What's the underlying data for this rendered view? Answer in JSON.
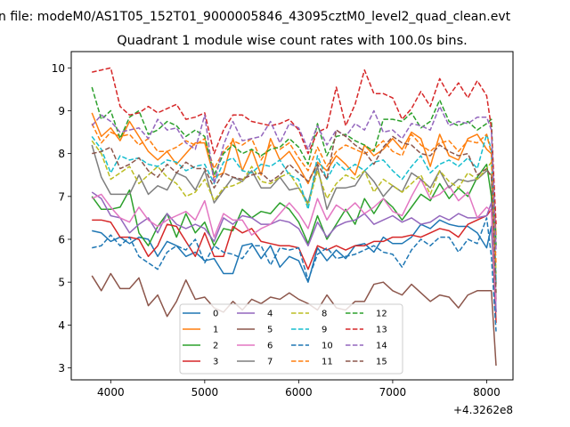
{
  "chart_data": {
    "type": "line",
    "suptitle": "n file: modeM0/AS1T05_152T01_9000005846_43095cztM0_level2_quad_clean.evt",
    "title": "Quadrant 1 module wise count rates with 100.0s bins.",
    "xlabel": "",
    "ylabel": "",
    "x_offset_label": "+4.3262e8",
    "xlim": [
      3580,
      8280
    ],
    "ylim": [
      2.72,
      10.38
    ],
    "xticks": [
      4000,
      5000,
      6000,
      7000,
      8000
    ],
    "yticks": [
      3,
      4,
      5,
      6,
      7,
      8,
      9,
      10
    ],
    "grid": false,
    "legend_position": "lower-center",
    "legend_columns": 4,
    "x": [
      3800,
      3900,
      4000,
      4100,
      4200,
      4300,
      4400,
      4500,
      4600,
      4700,
      4800,
      4900,
      5000,
      5100,
      5200,
      5300,
      5400,
      5500,
      5600,
      5700,
      5800,
      5900,
      6000,
      6100,
      6200,
      6300,
      6400,
      6500,
      6600,
      6700,
      6800,
      6900,
      7000,
      7100,
      7200,
      7300,
      7400,
      7500,
      7600,
      7700,
      7800,
      7900,
      8000,
      8050,
      8100
    ],
    "series": [
      {
        "name": "0",
        "color": "#1f77b4",
        "dash": "solid",
        "values": [
          6.2,
          6.15,
          5.95,
          6.05,
          5.9,
          6.05,
          6.0,
          5.6,
          5.95,
          5.85,
          5.6,
          5.7,
          5.5,
          5.55,
          5.2,
          5.2,
          5.85,
          5.9,
          5.55,
          5.85,
          5.35,
          5.6,
          5.5,
          5.0,
          5.8,
          5.5,
          5.75,
          5.55,
          5.85,
          5.9,
          5.7,
          6.05,
          5.9,
          5.9,
          6.05,
          6.35,
          6.25,
          6.45,
          6.35,
          6.3,
          6.3,
          6.15,
          5.8,
          6.3,
          4.3
        ]
      },
      {
        "name": "1",
        "color": "#ff7f0e",
        "dash": "solid",
        "values": [
          8.95,
          8.4,
          8.6,
          8.3,
          8.75,
          8.4,
          8.05,
          7.85,
          8.05,
          7.75,
          8.0,
          8.25,
          8.25,
          7.45,
          7.55,
          8.35,
          7.6,
          8.1,
          7.5,
          8.35,
          7.85,
          8.05,
          7.7,
          7.3,
          7.8,
          7.6,
          7.95,
          7.75,
          7.5,
          8.2,
          7.95,
          8.1,
          8.35,
          8.1,
          8.5,
          8.35,
          7.7,
          8.45,
          7.95,
          7.85,
          8.35,
          8.45,
          8.1,
          8.0,
          6.1
        ]
      },
      {
        "name": "2",
        "color": "#2ca02c",
        "dash": "solid",
        "values": [
          7.0,
          6.7,
          6.7,
          6.75,
          7.15,
          6.15,
          5.85,
          6.3,
          6.6,
          6.05,
          6.6,
          6.15,
          6.4,
          5.85,
          6.25,
          6.2,
          6.7,
          6.5,
          6.65,
          6.6,
          6.85,
          6.7,
          6.4,
          5.9,
          6.55,
          6.0,
          6.35,
          6.7,
          6.35,
          6.95,
          6.6,
          6.95,
          6.75,
          6.45,
          6.75,
          7.05,
          6.9,
          7.3,
          6.95,
          7.2,
          7.0,
          7.45,
          7.75,
          7.0,
          4.6
        ]
      },
      {
        "name": "3",
        "color": "#d62728",
        "dash": "solid",
        "values": [
          6.45,
          6.45,
          6.4,
          6.05,
          6.05,
          6.0,
          5.6,
          5.85,
          6.35,
          6.3,
          5.95,
          5.6,
          6.15,
          5.6,
          5.6,
          6.3,
          6.15,
          6.25,
          5.95,
          5.9,
          5.85,
          5.85,
          5.8,
          5.3,
          5.85,
          5.75,
          5.85,
          5.75,
          5.85,
          5.85,
          5.95,
          5.95,
          6.05,
          6.05,
          6.1,
          6.05,
          6.15,
          6.25,
          6.2,
          6.05,
          6.35,
          6.45,
          6.55,
          6.7,
          4.05
        ]
      },
      {
        "name": "4",
        "color": "#9467bd",
        "dash": "solid",
        "values": [
          7.1,
          6.95,
          6.55,
          6.5,
          6.15,
          6.35,
          6.5,
          6.15,
          6.6,
          6.35,
          6.25,
          6.35,
          6.25,
          5.95,
          6.5,
          6.35,
          6.55,
          6.5,
          6.35,
          6.35,
          6.45,
          6.4,
          6.25,
          5.85,
          6.4,
          6.05,
          6.3,
          6.4,
          6.45,
          6.6,
          6.35,
          6.45,
          6.55,
          6.4,
          6.5,
          6.35,
          6.4,
          6.55,
          6.45,
          6.6,
          6.5,
          6.5,
          6.55,
          6.85,
          4.3
        ]
      },
      {
        "name": "5",
        "color": "#8c564b",
        "dash": "solid",
        "values": [
          5.15,
          4.8,
          5.2,
          4.85,
          4.85,
          5.1,
          4.45,
          4.7,
          4.2,
          4.55,
          5.05,
          4.6,
          4.65,
          4.4,
          4.3,
          4.55,
          4.35,
          4.6,
          4.5,
          4.65,
          4.6,
          4.75,
          4.6,
          4.5,
          4.35,
          4.7,
          4.4,
          4.35,
          4.55,
          4.55,
          4.95,
          5.0,
          4.8,
          4.7,
          4.95,
          4.75,
          4.55,
          4.7,
          4.65,
          4.4,
          4.7,
          4.8,
          4.8,
          4.8,
          3.05
        ]
      },
      {
        "name": "6",
        "color": "#e377c2",
        "dash": "solid",
        "values": [
          6.95,
          7.05,
          6.75,
          6.5,
          6.4,
          6.75,
          6.45,
          6.3,
          6.45,
          6.55,
          6.65,
          6.45,
          6.9,
          6.05,
          6.6,
          6.45,
          6.45,
          6.1,
          6.25,
          6.35,
          6.6,
          6.85,
          6.6,
          6.25,
          6.95,
          6.45,
          6.8,
          6.65,
          6.85,
          6.6,
          6.75,
          6.95,
          6.65,
          6.55,
          7.0,
          7.4,
          6.95,
          7.05,
          7.25,
          6.9,
          7.1,
          6.5,
          6.75,
          6.65,
          4.55
        ]
      },
      {
        "name": "7",
        "color": "#7f7f7f",
        "dash": "solid",
        "values": [
          8.2,
          7.45,
          7.05,
          7.05,
          7.05,
          7.5,
          7.05,
          7.25,
          7.15,
          7.55,
          7.45,
          7.15,
          7.6,
          6.85,
          7.15,
          7.45,
          7.35,
          7.6,
          7.2,
          7.2,
          7.45,
          7.15,
          7.2,
          6.85,
          7.7,
          6.7,
          7.2,
          7.2,
          7.25,
          7.6,
          7.35,
          7.0,
          7.25,
          7.1,
          7.55,
          7.4,
          7.2,
          7.6,
          7.2,
          7.4,
          7.35,
          7.4,
          7.6,
          7.5,
          4.95
        ]
      },
      {
        "name": "8",
        "color": "#bcbd22",
        "dash": "dashed",
        "values": [
          8.3,
          8.0,
          7.4,
          7.55,
          7.7,
          7.3,
          7.5,
          7.7,
          7.45,
          7.3,
          7.0,
          7.1,
          7.4,
          6.9,
          7.2,
          7.25,
          7.35,
          7.7,
          7.35,
          7.3,
          7.45,
          7.55,
          7.2,
          6.8,
          7.6,
          6.95,
          7.3,
          7.5,
          7.4,
          7.6,
          7.1,
          7.4,
          7.25,
          7.1,
          7.3,
          7.5,
          7.05,
          7.6,
          7.35,
          7.2,
          7.55,
          7.4,
          7.65,
          7.8,
          5.2
        ]
      },
      {
        "name": "9",
        "color": "#17becf",
        "dash": "dashed",
        "values": [
          8.4,
          8.1,
          7.55,
          7.95,
          7.85,
          7.9,
          7.75,
          7.7,
          7.85,
          7.8,
          7.6,
          7.7,
          7.75,
          7.3,
          7.8,
          7.9,
          7.6,
          7.55,
          7.75,
          7.7,
          7.85,
          7.5,
          7.4,
          6.7,
          7.95,
          7.4,
          7.8,
          7.6,
          7.75,
          7.6,
          7.8,
          7.85,
          7.6,
          7.4,
          7.7,
          7.95,
          7.55,
          7.75,
          7.85,
          7.7,
          7.9,
          7.65,
          8.45,
          8.1,
          5.0
        ]
      },
      {
        "name": "10",
        "color": "#1f77b4",
        "dash": "dashed",
        "values": [
          5.8,
          5.85,
          6.1,
          5.85,
          6.05,
          5.6,
          5.45,
          5.3,
          5.7,
          5.85,
          5.75,
          6.0,
          5.45,
          5.85,
          5.7,
          5.65,
          5.55,
          5.85,
          5.85,
          5.4,
          5.8,
          5.75,
          5.8,
          5.05,
          5.65,
          5.8,
          5.55,
          5.6,
          5.65,
          5.75,
          5.85,
          5.7,
          5.65,
          5.35,
          5.75,
          6.0,
          5.85,
          6.05,
          6.05,
          5.7,
          6.0,
          5.9,
          6.5,
          5.6,
          3.85
        ]
      },
      {
        "name": "11",
        "color": "#ff7f0e",
        "dash": "dashed",
        "values": [
          8.7,
          8.25,
          8.5,
          8.4,
          8.45,
          8.2,
          8.35,
          8.05,
          8.05,
          8.15,
          8.3,
          8.2,
          8.35,
          7.65,
          8.05,
          8.3,
          8.2,
          8.35,
          7.85,
          8.2,
          8.1,
          8.25,
          7.9,
          7.6,
          8.15,
          7.7,
          8.05,
          8.2,
          8.1,
          8.0,
          8.1,
          8.3,
          8.05,
          7.95,
          8.45,
          8.2,
          8.05,
          8.25,
          8.3,
          8.05,
          8.3,
          8.25,
          8.45,
          8.0,
          5.4
        ]
      },
      {
        "name": "12",
        "color": "#2ca02c",
        "dash": "dashed",
        "values": [
          9.55,
          8.8,
          9.0,
          8.35,
          8.85,
          9.0,
          8.45,
          8.55,
          8.75,
          8.65,
          8.4,
          8.55,
          8.4,
          7.5,
          8.0,
          8.2,
          8.0,
          8.1,
          7.95,
          8.1,
          8.15,
          8.35,
          8.15,
          7.75,
          8.7,
          7.95,
          8.4,
          8.45,
          8.3,
          8.2,
          8.05,
          8.8,
          8.8,
          8.75,
          8.95,
          8.6,
          8.75,
          9.25,
          8.75,
          8.65,
          8.75,
          8.55,
          8.7,
          8.8,
          5.85
        ]
      },
      {
        "name": "13",
        "color": "#d62728",
        "dash": "dashed",
        "values": [
          9.9,
          9.95,
          10.0,
          9.1,
          8.9,
          8.95,
          9.1,
          8.95,
          9.05,
          9.15,
          8.8,
          8.85,
          8.95,
          8.0,
          8.55,
          8.9,
          8.9,
          8.75,
          8.7,
          8.65,
          8.7,
          8.8,
          8.55,
          8.0,
          8.5,
          8.6,
          9.55,
          8.65,
          9.15,
          9.95,
          9.4,
          9.4,
          9.3,
          8.8,
          9.05,
          9.45,
          9.1,
          9.75,
          9.35,
          9.65,
          9.3,
          9.7,
          9.35,
          8.6,
          6.35
        ]
      },
      {
        "name": "14",
        "color": "#9467bd",
        "dash": "dashed",
        "values": [
          8.65,
          8.9,
          8.75,
          8.5,
          8.55,
          8.6,
          8.35,
          8.8,
          8.55,
          8.6,
          8.25,
          8.1,
          8.9,
          7.3,
          8.2,
          8.75,
          8.3,
          8.35,
          8.4,
          8.75,
          8.25,
          8.7,
          8.6,
          8.1,
          8.65,
          8.2,
          8.55,
          8.4,
          8.7,
          8.55,
          9.0,
          8.5,
          8.55,
          8.35,
          8.7,
          8.65,
          8.55,
          9.1,
          8.65,
          8.75,
          8.7,
          8.85,
          8.85,
          8.55,
          5.7
        ]
      },
      {
        "name": "15",
        "color": "#8c564b",
        "dash": "dashed",
        "values": [
          8.0,
          8.05,
          8.15,
          7.65,
          7.75,
          7.9,
          7.6,
          7.45,
          7.75,
          7.55,
          7.8,
          7.65,
          7.65,
          7.2,
          7.55,
          7.45,
          7.4,
          7.5,
          7.55,
          7.35,
          7.5,
          7.75,
          7.55,
          7.35,
          7.75,
          7.4,
          8.55,
          8.4,
          8.2,
          8.05,
          7.75,
          8.15,
          8.4,
          8.25,
          8.2,
          8.0,
          7.95,
          8.2,
          8.05,
          7.95,
          8.0,
          7.5,
          7.65,
          7.45,
          4.75
        ]
      }
    ]
  }
}
